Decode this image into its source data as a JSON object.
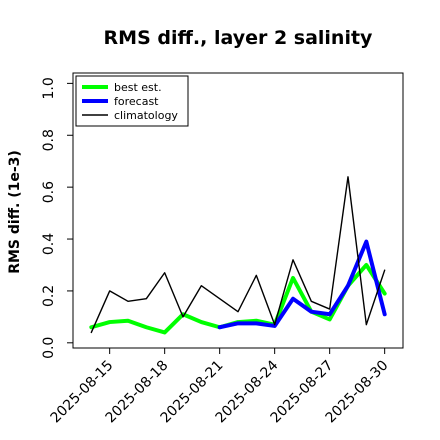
{
  "chart_data": {
    "type": "line",
    "title": "RMS diff., layer 2 salinity",
    "ylabel": "RMS diff. (1e-3)",
    "xlabel": "",
    "ylim": [
      -0.02,
      1.04
    ],
    "xlim": [
      "2025-08-13",
      "2025-08-31"
    ],
    "yticks": [
      0.0,
      0.2,
      0.4,
      0.6,
      0.8,
      1.0
    ],
    "ytick_labels": [
      "0.0",
      "0.2",
      "0.4",
      "0.6",
      "0.8",
      "1.0"
    ],
    "xticks": [
      "2025-08-15",
      "2025-08-18",
      "2025-08-21",
      "2025-08-24",
      "2025-08-27",
      "2025-08-30"
    ],
    "xtick_labels": [
      "2025-08-15",
      "2025-08-18",
      "2025-08-21",
      "2025-08-24",
      "2025-08-27",
      "2025-08-30"
    ],
    "highlighted_xtick": "2025-08-21",
    "highlight_color": "#228b22",
    "grid": false,
    "legend_position": "top-left",
    "series": [
      {
        "name": "best est.",
        "color": "#00ff00",
        "x": [
          "2025-08-14",
          "2025-08-15",
          "2025-08-16",
          "2025-08-17",
          "2025-08-18",
          "2025-08-19",
          "2025-08-20",
          "2025-08-21",
          "2025-08-22",
          "2025-08-23",
          "2025-08-24",
          "2025-08-25",
          "2025-08-26",
          "2025-08-27",
          "2025-08-28",
          "2025-08-29",
          "2025-08-30"
        ],
        "values": [
          0.06,
          0.08,
          0.085,
          0.06,
          0.04,
          0.11,
          0.08,
          0.06,
          0.08,
          0.085,
          0.07,
          0.25,
          0.12,
          0.09,
          0.22,
          0.3,
          0.19
        ]
      },
      {
        "name": "forecast",
        "color": "#0000ff",
        "x": [
          "2025-08-21",
          "2025-08-22",
          "2025-08-23",
          "2025-08-24",
          "2025-08-25",
          "2025-08-26",
          "2025-08-27",
          "2025-08-28",
          "2025-08-29",
          "2025-08-30"
        ],
        "values": [
          0.06,
          0.075,
          0.075,
          0.065,
          0.17,
          0.12,
          0.11,
          0.22,
          0.39,
          0.11
        ]
      },
      {
        "name": "climatology",
        "color": "#000000",
        "x": [
          "2025-08-14",
          "2025-08-15",
          "2025-08-16",
          "2025-08-17",
          "2025-08-18",
          "2025-08-19",
          "2025-08-20",
          "2025-08-21",
          "2025-08-22",
          "2025-08-23",
          "2025-08-24",
          "2025-08-25",
          "2025-08-26",
          "2025-08-27",
          "2025-08-28",
          "2025-08-29",
          "2025-08-30"
        ],
        "values": [
          0.04,
          0.2,
          0.16,
          0.17,
          0.27,
          0.1,
          0.22,
          0.17,
          0.12,
          0.26,
          0.07,
          0.32,
          0.16,
          0.13,
          0.64,
          0.07,
          0.28
        ]
      }
    ]
  }
}
